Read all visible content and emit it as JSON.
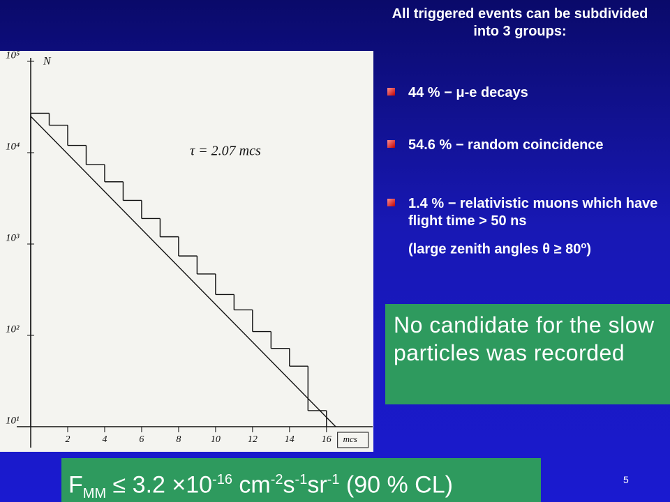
{
  "slide": {
    "heading": "All triggered events can be subdivided into 3 groups:",
    "bullets": [
      {
        "parts": [
          "44 % − μ-e decays"
        ]
      },
      {
        "parts": [
          "54.6 % − random coincidence"
        ]
      },
      {
        "parts": [
          "1.4 % − relativistic muons which have flight time > 50 ns"
        ]
      }
    ],
    "note": {
      "base": "(large zenith angles θ ≥ 80",
      "sup": "o",
      "tail": ")"
    },
    "callout": "No candidate for the slow particles was recorded",
    "formula": [
      {
        "base": "F",
        "sub": "MM"
      },
      {
        "base": " ≤ 3.2 ×10",
        "sup": "-16"
      },
      {
        "base": " cm",
        "sup": "-2"
      },
      {
        "base": "s",
        "sup": "-1"
      },
      {
        "base": "sr",
        "sup": "-1"
      },
      {
        "base": " (90 % CL)"
      }
    ],
    "page_number": "5"
  },
  "chart_data": {
    "type": "histogram",
    "y_label": "N",
    "x_label": "mcs",
    "annotation": "τ = 2.07 mcs",
    "log_y": true,
    "color": "#111111",
    "bins": [
      0,
      1,
      2,
      3,
      4,
      5,
      6,
      7,
      8,
      9,
      10,
      11,
      12,
      13,
      14,
      15,
      16
    ],
    "values": [
      27000,
      20000,
      12000,
      7400,
      4800,
      3000,
      1900,
      1200,
      740,
      470,
      280,
      190,
      110,
      72,
      46,
      15
    ],
    "fit": {
      "x": [
        0,
        16.5
      ],
      "values": [
        25000,
        10
      ]
    },
    "xlim": [
      0,
      18.5
    ],
    "ylim": [
      10,
      120000
    ],
    "xticks": [
      2,
      4,
      6,
      8,
      10,
      12,
      14,
      16
    ],
    "yticks": [
      {
        "value": 10,
        "label": "10¹"
      },
      {
        "value": 100,
        "label": "10²"
      },
      {
        "value": 1000,
        "label": "10³"
      },
      {
        "value": 10000,
        "label": "10⁴"
      },
      {
        "value": 100000,
        "label": "10⁵"
      }
    ]
  }
}
